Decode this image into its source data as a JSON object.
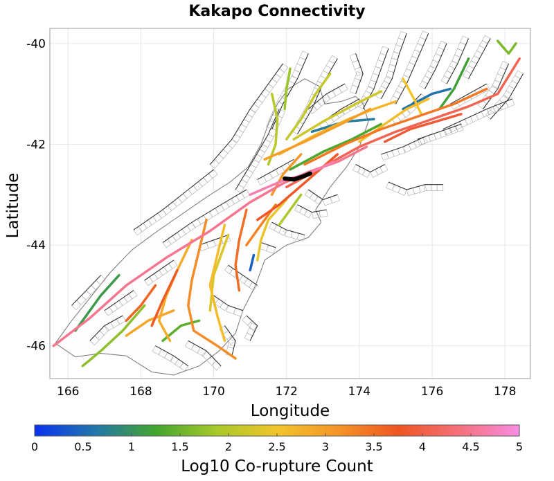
{
  "title": "Kakapo Connectivity",
  "x_axis": {
    "label": "Longitude",
    "range": [
      165.5,
      178.7
    ],
    "ticks": [
      "166",
      "168",
      "170",
      "172",
      "174",
      "176",
      "178"
    ],
    "tick_values": [
      166,
      168,
      170,
      172,
      174,
      176,
      178
    ]
  },
  "y_axis": {
    "label": "Latitude",
    "range": [
      -46.65,
      -39.7
    ],
    "ticks": [
      "-40",
      "-42",
      "-44",
      "-46"
    ],
    "tick_values": [
      -40,
      -42,
      -44,
      -46
    ]
  },
  "colorbar": {
    "label": "Log10 Co-rupture Count",
    "range": [
      0,
      5
    ],
    "ticks": [
      "0",
      "0.5",
      "1",
      "1.5",
      "2",
      "2.5",
      "3",
      "3.5",
      "4",
      "4.5",
      "5"
    ],
    "tick_values": [
      0,
      0.5,
      1,
      1.5,
      2,
      2.5,
      3,
      3.5,
      4,
      4.5,
      5
    ],
    "colors": [
      "#0a32f0",
      "#2277aa",
      "#44a52e",
      "#a8c92a",
      "#f2c52c",
      "#f59428",
      "#ee5522",
      "#f5707a",
      "#f78de4"
    ]
  },
  "colors": {
    "background": "#ffffff",
    "grid": "#e6e6e6",
    "coastline": "#808080",
    "fault_trace": "#333333",
    "fault_surface": "#aaaaaa",
    "source_fault": "#000000"
  },
  "source_fault": {
    "name": "Kakapo",
    "trace": [
      [
        171.95,
        -42.68
      ],
      [
        172.2,
        -42.7
      ],
      [
        172.45,
        -42.64
      ],
      [
        172.65,
        -42.58
      ]
    ]
  },
  "coastline": [
    [
      165.65,
      -45.95
    ],
    [
      166.1,
      -45.5
    ],
    [
      166.6,
      -45.05
    ],
    [
      167.15,
      -44.55
    ],
    [
      167.75,
      -44.1
    ],
    [
      168.4,
      -43.75
    ],
    [
      169.1,
      -43.4
    ],
    [
      169.8,
      -43.05
    ],
    [
      170.45,
      -42.75
    ],
    [
      170.95,
      -42.45
    ],
    [
      171.3,
      -42.0
    ],
    [
      171.5,
      -41.6
    ],
    [
      171.75,
      -41.2
    ],
    [
      172.05,
      -40.9
    ],
    [
      172.5,
      -40.7
    ],
    [
      172.9,
      -40.85
    ],
    [
      173.05,
      -41.2
    ],
    [
      173.5,
      -41.15
    ],
    [
      173.9,
      -41.05
    ],
    [
      174.1,
      -41.2
    ],
    [
      174.25,
      -41.55
    ],
    [
      174.0,
      -42.05
    ],
    [
      173.65,
      -42.45
    ],
    [
      173.2,
      -42.85
    ],
    [
      172.8,
      -43.3
    ],
    [
      172.95,
      -43.55
    ],
    [
      172.6,
      -43.85
    ],
    [
      172.0,
      -44.0
    ],
    [
      171.4,
      -44.3
    ],
    [
      171.15,
      -44.8
    ],
    [
      170.8,
      -45.3
    ],
    [
      170.6,
      -45.75
    ],
    [
      170.15,
      -46.1
    ],
    [
      169.6,
      -46.4
    ],
    [
      168.9,
      -46.58
    ],
    [
      168.3,
      -46.52
    ],
    [
      167.6,
      -46.2
    ],
    [
      166.9,
      -46.15
    ],
    [
      166.2,
      -46.22
    ]
  ],
  "ruptures": [
    {
      "value": 4.5,
      "points": [
        [
          165.6,
          -46.0
        ],
        [
          166.6,
          -45.45
        ],
        [
          167.6,
          -44.8
        ],
        [
          168.7,
          -44.25
        ],
        [
          169.9,
          -43.72
        ],
        [
          171.0,
          -43.15
        ],
        [
          171.9,
          -42.78
        ],
        [
          172.6,
          -42.55
        ],
        [
          173.4,
          -42.35
        ],
        [
          174.2,
          -42.05
        ]
      ]
    },
    {
      "value": 4.7,
      "points": [
        [
          171.0,
          -43.0
        ],
        [
          171.9,
          -42.72
        ],
        [
          172.6,
          -42.58
        ],
        [
          173.3,
          -42.35
        ]
      ]
    },
    {
      "value": 4.1,
      "points": [
        [
          172.0,
          -42.85
        ],
        [
          173.0,
          -42.45
        ],
        [
          174.0,
          -42.05
        ],
        [
          175.0,
          -41.75
        ],
        [
          176.0,
          -41.5
        ],
        [
          177.0,
          -41.25
        ],
        [
          177.8,
          -41.0
        ],
        [
          178.4,
          -40.3
        ]
      ]
    },
    {
      "value": 3.4,
      "points": [
        [
          172.5,
          -42.4
        ],
        [
          173.6,
          -42.0
        ],
        [
          174.6,
          -41.7
        ],
        [
          175.6,
          -41.45
        ],
        [
          176.6,
          -41.2
        ],
        [
          177.5,
          -40.9
        ]
      ]
    },
    {
      "value": 3.0,
      "points": [
        [
          171.4,
          -42.3
        ],
        [
          172.5,
          -41.95
        ],
        [
          173.5,
          -41.6
        ],
        [
          174.3,
          -41.3
        ]
      ]
    },
    {
      "value": 2.7,
      "points": [
        [
          171.8,
          -42.2
        ],
        [
          172.7,
          -41.85
        ],
        [
          173.7,
          -41.5
        ],
        [
          174.4,
          -41.3
        ],
        [
          175.0,
          -41.15
        ]
      ]
    },
    {
      "value": 2.2,
      "points": [
        [
          172.2,
          -41.9
        ],
        [
          173.0,
          -41.55
        ],
        [
          173.9,
          -41.2
        ],
        [
          174.6,
          -40.95
        ]
      ]
    },
    {
      "value": 1.3,
      "points": [
        [
          172.1,
          -42.5
        ],
        [
          173.0,
          -42.15
        ],
        [
          173.8,
          -41.9
        ],
        [
          174.6,
          -41.6
        ]
      ]
    },
    {
      "value": 0.7,
      "points": [
        [
          172.7,
          -41.75
        ],
        [
          173.6,
          -41.55
        ],
        [
          174.4,
          -41.5
        ]
      ]
    },
    {
      "value": 0.6,
      "points": [
        [
          175.2,
          -41.3
        ],
        [
          176.0,
          -41.0
        ],
        [
          176.5,
          -40.9
        ]
      ]
    },
    {
      "value": 2.0,
      "points": [
        [
          171.6,
          -41.0
        ],
        [
          171.75,
          -41.5
        ],
        [
          171.7,
          -42.0
        ],
        [
          171.5,
          -42.4
        ]
      ]
    },
    {
      "value": 1.8,
      "points": [
        [
          172.1,
          -40.5
        ],
        [
          172.0,
          -40.9
        ],
        [
          171.95,
          -41.3
        ]
      ]
    },
    {
      "value": 2.1,
      "points": [
        [
          173.2,
          -40.6
        ],
        [
          172.8,
          -41.0
        ],
        [
          172.4,
          -41.5
        ],
        [
          172.0,
          -41.9
        ]
      ]
    },
    {
      "value": 2.5,
      "points": [
        [
          175.2,
          -40.7
        ],
        [
          175.5,
          -41.1
        ],
        [
          175.7,
          -41.4
        ]
      ]
    },
    {
      "value": 1.6,
      "points": [
        [
          177.8,
          -39.95
        ],
        [
          178.1,
          -40.2
        ],
        [
          178.3,
          -40.0
        ]
      ]
    },
    {
      "value": 1.2,
      "points": [
        [
          177.0,
          -40.3
        ],
        [
          176.6,
          -40.9
        ],
        [
          176.2,
          -41.3
        ]
      ]
    },
    {
      "value": 3.2,
      "points": [
        [
          169.8,
          -43.5
        ],
        [
          169.6,
          -44.1
        ],
        [
          169.4,
          -44.7
        ],
        [
          169.3,
          -45.2
        ],
        [
          169.45,
          -45.7
        ],
        [
          170.1,
          -46.0
        ],
        [
          170.6,
          -46.25
        ]
      ]
    },
    {
      "value": 2.8,
      "points": [
        [
          169.4,
          -43.9
        ],
        [
          169.0,
          -44.5
        ],
        [
          168.7,
          -45.0
        ],
        [
          168.5,
          -45.5
        ],
        [
          168.8,
          -45.9
        ]
      ]
    },
    {
      "value": 2.6,
      "points": [
        [
          170.3,
          -43.6
        ],
        [
          170.1,
          -44.2
        ],
        [
          169.9,
          -44.8
        ],
        [
          170.1,
          -45.4
        ],
        [
          170.3,
          -45.9
        ]
      ]
    },
    {
      "value": 3.5,
      "points": [
        [
          170.9,
          -43.3
        ],
        [
          170.7,
          -43.9
        ],
        [
          170.6,
          -44.4
        ],
        [
          170.7,
          -44.9
        ]
      ]
    },
    {
      "value": 3.3,
      "points": [
        [
          171.7,
          -43.2
        ],
        [
          171.3,
          -43.6
        ],
        [
          170.9,
          -44.0
        ]
      ]
    },
    {
      "value": 3.7,
      "points": [
        [
          169.0,
          -44.5
        ],
        [
          168.6,
          -45.1
        ],
        [
          168.3,
          -45.6
        ]
      ]
    },
    {
      "value": 2.9,
      "points": [
        [
          168.9,
          -45.3
        ],
        [
          168.2,
          -45.5
        ],
        [
          167.6,
          -45.8
        ]
      ]
    },
    {
      "value": 1.7,
      "points": [
        [
          168.1,
          -45.2
        ],
        [
          167.5,
          -45.7
        ],
        [
          166.9,
          -46.1
        ],
        [
          166.4,
          -46.4
        ]
      ]
    },
    {
      "value": 1.4,
      "points": [
        [
          169.6,
          -45.5
        ],
        [
          169.1,
          -45.6
        ],
        [
          168.6,
          -45.9
        ]
      ]
    },
    {
      "value": 2.4,
      "points": [
        [
          172.0,
          -43.1
        ],
        [
          171.5,
          -43.5
        ],
        [
          171.3,
          -43.9
        ],
        [
          171.2,
          -44.3
        ]
      ]
    },
    {
      "value": 1.9,
      "points": [
        [
          172.4,
          -43.0
        ],
        [
          172.1,
          -43.3
        ],
        [
          171.8,
          -43.6
        ]
      ]
    },
    {
      "value": 3.8,
      "points": [
        [
          173.4,
          -42.2
        ],
        [
          172.6,
          -42.7
        ],
        [
          171.8,
          -43.2
        ],
        [
          171.2,
          -43.5
        ]
      ]
    },
    {
      "value": 2.3,
      "points": [
        [
          170.4,
          -43.8
        ],
        [
          170.0,
          -44.6
        ],
        [
          169.9,
          -45.3
        ]
      ]
    },
    {
      "value": 3.6,
      "points": [
        [
          168.4,
          -44.8
        ],
        [
          168.0,
          -45.2
        ],
        [
          167.6,
          -45.5
        ]
      ]
    },
    {
      "value": 3.1,
      "points": [
        [
          172.4,
          -42.2
        ],
        [
          171.9,
          -42.6
        ],
        [
          171.6,
          -43.0
        ]
      ]
    },
    {
      "value": 1.1,
      "points": [
        [
          166.2,
          -45.7
        ],
        [
          166.9,
          -45.0
        ],
        [
          167.4,
          -44.6
        ]
      ]
    },
    {
      "value": 0.4,
      "points": [
        [
          171.1,
          -44.2
        ],
        [
          171.0,
          -44.5
        ]
      ]
    },
    {
      "value": 2.6,
      "points": [
        [
          174.0,
          -41.95
        ],
        [
          174.7,
          -41.6
        ],
        [
          175.3,
          -41.3
        ],
        [
          175.9,
          -41.1
        ]
      ]
    },
    {
      "value": 3.9,
      "points": [
        [
          174.7,
          -41.95
        ],
        [
          175.4,
          -41.7
        ],
        [
          176.1,
          -41.55
        ],
        [
          176.8,
          -41.4
        ]
      ]
    }
  ],
  "faults": [
    [
      [
        167.8,
        -43.7
      ],
      [
        168.6,
        -43.3
      ],
      [
        169.3,
        -42.9
      ],
      [
        170.0,
        -42.5
      ]
    ],
    [
      [
        168.6,
        -43.95
      ],
      [
        169.4,
        -43.55
      ],
      [
        170.2,
        -43.2
      ],
      [
        170.9,
        -42.9
      ]
    ],
    [
      [
        169.9,
        -42.4
      ],
      [
        170.5,
        -41.9
      ],
      [
        171.0,
        -41.3
      ],
      [
        171.5,
        -40.8
      ],
      [
        171.9,
        -40.4
      ]
    ],
    [
      [
        170.6,
        -42.9
      ],
      [
        171.1,
        -42.3
      ],
      [
        171.5,
        -41.8
      ],
      [
        171.8,
        -41.3
      ]
    ],
    [
      [
        172.6,
        -40.2
      ],
      [
        172.3,
        -40.7
      ],
      [
        171.9,
        -41.2
      ],
      [
        171.6,
        -41.7
      ]
    ],
    [
      [
        173.4,
        -40.3
      ],
      [
        173.0,
        -40.8
      ],
      [
        172.7,
        -41.3
      ],
      [
        172.3,
        -41.8
      ]
    ],
    [
      [
        173.9,
        -40.2
      ],
      [
        174.1,
        -40.6
      ],
      [
        173.9,
        -41.0
      ]
    ],
    [
      [
        174.8,
        -40.1
      ],
      [
        174.6,
        -40.5
      ],
      [
        174.4,
        -40.9
      ],
      [
        174.1,
        -41.3
      ]
    ],
    [
      [
        175.3,
        -39.8
      ],
      [
        175.1,
        -40.2
      ],
      [
        174.9,
        -40.7
      ],
      [
        174.6,
        -41.1
      ]
    ],
    [
      [
        175.9,
        -39.8
      ],
      [
        175.6,
        -40.3
      ],
      [
        175.3,
        -40.8
      ],
      [
        175.0,
        -41.2
      ]
    ],
    [
      [
        176.4,
        -40.0
      ],
      [
        176.1,
        -40.5
      ],
      [
        175.8,
        -40.9
      ]
    ],
    [
      [
        177.0,
        -39.9
      ],
      [
        176.7,
        -40.4
      ],
      [
        176.4,
        -40.8
      ]
    ],
    [
      [
        177.6,
        -39.9
      ],
      [
        177.3,
        -40.3
      ],
      [
        177.0,
        -40.7
      ]
    ],
    [
      [
        178.1,
        -40.4
      ],
      [
        177.8,
        -40.9
      ],
      [
        177.4,
        -41.3
      ]
    ],
    [
      [
        178.5,
        -40.6
      ],
      [
        178.1,
        -41.1
      ],
      [
        177.6,
        -41.5
      ]
    ],
    [
      [
        176.3,
        -41.7
      ],
      [
        176.9,
        -41.5
      ],
      [
        177.5,
        -41.3
      ],
      [
        178.2,
        -41.1
      ]
    ],
    [
      [
        175.6,
        -41.9
      ],
      [
        176.2,
        -41.75
      ],
      [
        176.8,
        -41.6
      ]
    ],
    [
      [
        174.6,
        -42.2
      ],
      [
        175.2,
        -42.05
      ],
      [
        175.8,
        -41.85
      ]
    ],
    [
      [
        174.8,
        -42.75
      ],
      [
        175.3,
        -42.9
      ],
      [
        175.8,
        -42.8
      ],
      [
        176.3,
        -42.8
      ]
    ],
    [
      [
        173.9,
        -42.4
      ],
      [
        174.3,
        -42.55
      ],
      [
        174.7,
        -42.4
      ]
    ],
    [
      [
        172.6,
        -42.9
      ],
      [
        173.0,
        -43.1
      ],
      [
        173.4,
        -43.0
      ]
    ],
    [
      [
        172.3,
        -43.2
      ],
      [
        172.7,
        -43.35
      ],
      [
        173.1,
        -43.3
      ]
    ],
    [
      [
        171.6,
        -43.55
      ],
      [
        172.0,
        -43.7
      ],
      [
        172.5,
        -43.8
      ]
    ],
    [
      [
        171.3,
        -43.95
      ],
      [
        171.7,
        -44.05
      ]
    ],
    [
      [
        170.4,
        -44.4
      ],
      [
        170.8,
        -44.6
      ],
      [
        171.2,
        -44.8
      ]
    ],
    [
      [
        170.0,
        -45.0
      ],
      [
        170.4,
        -45.2
      ],
      [
        170.8,
        -45.3
      ]
    ],
    [
      [
        170.9,
        -45.4
      ],
      [
        171.2,
        -45.6
      ],
      [
        171.0,
        -45.9
      ]
    ],
    [
      [
        170.3,
        -45.6
      ],
      [
        170.6,
        -45.9
      ],
      [
        170.5,
        -46.2
      ]
    ],
    [
      [
        169.3,
        -45.9
      ],
      [
        169.8,
        -46.1
      ],
      [
        170.2,
        -46.4
      ]
    ],
    [
      [
        168.4,
        -46.0
      ],
      [
        168.9,
        -46.2
      ],
      [
        169.3,
        -46.4
      ]
    ],
    [
      [
        167.0,
        -45.3
      ],
      [
        167.4,
        -45.1
      ],
      [
        167.8,
        -44.9
      ]
    ],
    [
      [
        166.6,
        -45.9
      ],
      [
        167.0,
        -45.6
      ],
      [
        167.5,
        -45.4
      ]
    ],
    [
      [
        166.1,
        -45.2
      ],
      [
        166.5,
        -44.9
      ],
      [
        166.9,
        -44.6
      ]
    ],
    [
      [
        168.1,
        -44.7
      ],
      [
        168.5,
        -44.5
      ],
      [
        168.9,
        -44.3
      ]
    ],
    [
      [
        169.6,
        -44.0
      ],
      [
        170.0,
        -43.9
      ],
      [
        170.4,
        -43.8
      ]
    ],
    [
      [
        172.9,
        -41.6
      ],
      [
        173.5,
        -41.3
      ],
      [
        174.0,
        -41.1
      ]
    ],
    [
      [
        172.6,
        -41.3
      ],
      [
        173.1,
        -41.0
      ],
      [
        173.6,
        -40.8
      ]
    ],
    [
      [
        174.9,
        -41.5
      ],
      [
        175.3,
        -41.3
      ],
      [
        175.7,
        -41.0
      ]
    ],
    [
      [
        176.5,
        -41.2
      ],
      [
        177.0,
        -41.0
      ],
      [
        177.5,
        -40.8
      ]
    ],
    [
      [
        171.2,
        -42.7
      ],
      [
        171.7,
        -42.5
      ],
      [
        172.2,
        -42.3
      ]
    ]
  ]
}
